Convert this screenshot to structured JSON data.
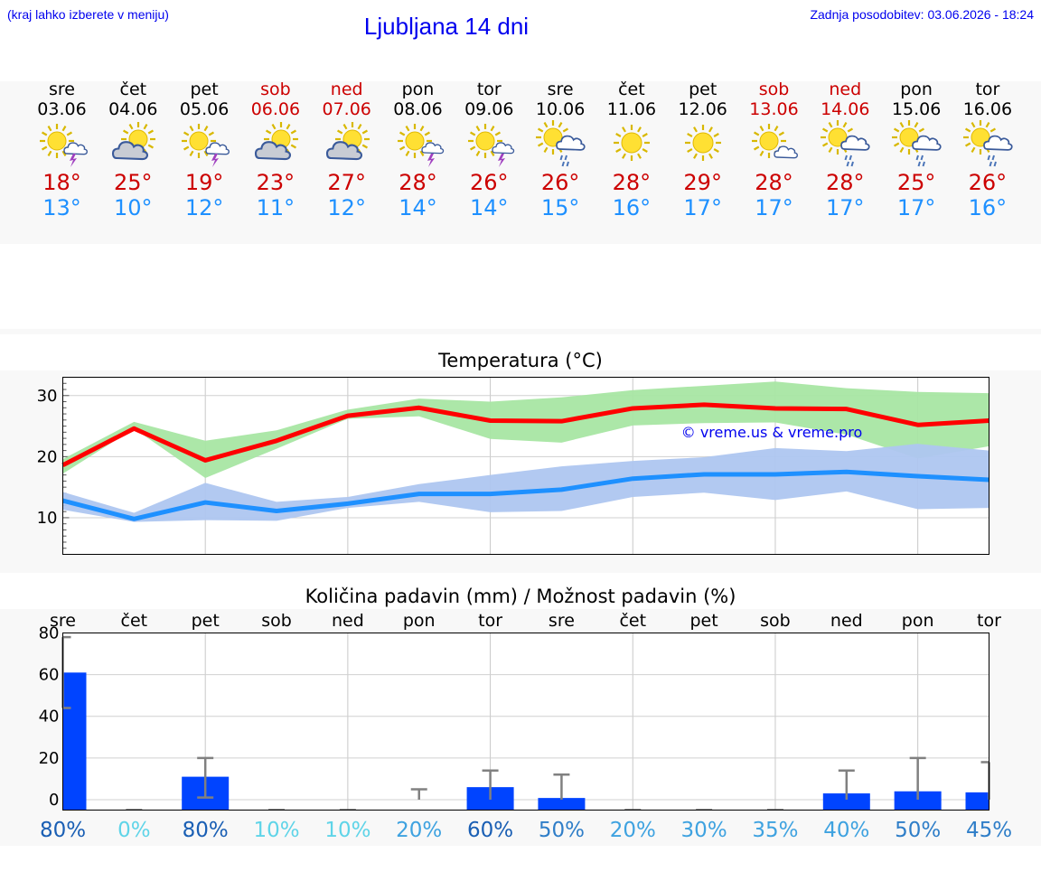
{
  "header": {
    "hint": "(kraj lahko izberete v meniju)",
    "title": "Ljubljana 14 dni",
    "updated": "Zadnja posodobitev: 03.06.2026 - 18:24"
  },
  "days": [
    {
      "name": "sre",
      "date": "03.06",
      "weekend": false,
      "icon": "sun-cloud-thunder-icon",
      "hi": "18°",
      "lo": "13°"
    },
    {
      "name": "čet",
      "date": "04.06",
      "weekend": false,
      "icon": "sun-cloud-icon",
      "hi": "25°",
      "lo": "10°"
    },
    {
      "name": "pet",
      "date": "05.06",
      "weekend": false,
      "icon": "sun-cloud-thunder-icon",
      "hi": "19°",
      "lo": "12°"
    },
    {
      "name": "sob",
      "date": "06.06",
      "weekend": true,
      "icon": "sun-cloud-icon",
      "hi": "23°",
      "lo": "11°"
    },
    {
      "name": "ned",
      "date": "07.06",
      "weekend": true,
      "icon": "sun-cloud-icon",
      "hi": "27°",
      "lo": "12°"
    },
    {
      "name": "pon",
      "date": "08.06",
      "weekend": false,
      "icon": "sun-thunder-icon",
      "hi": "28°",
      "lo": "14°"
    },
    {
      "name": "tor",
      "date": "09.06",
      "weekend": false,
      "icon": "sun-thunder-icon",
      "hi": "26°",
      "lo": "14°"
    },
    {
      "name": "sre",
      "date": "10.06",
      "weekend": false,
      "icon": "sun-cloud-rain-icon",
      "hi": "26°",
      "lo": "15°"
    },
    {
      "name": "čet",
      "date": "11.06",
      "weekend": false,
      "icon": "sun-icon",
      "hi": "28°",
      "lo": "16°"
    },
    {
      "name": "pet",
      "date": "12.06",
      "weekend": false,
      "icon": "sun-icon",
      "hi": "29°",
      "lo": "17°"
    },
    {
      "name": "sob",
      "date": "13.06",
      "weekend": true,
      "icon": "sun-small-cloud-icon",
      "hi": "28°",
      "lo": "17°"
    },
    {
      "name": "ned",
      "date": "14.06",
      "weekend": true,
      "icon": "sun-cloud-rain-icon",
      "hi": "28°",
      "lo": "17°"
    },
    {
      "name": "pon",
      "date": "15.06",
      "weekend": false,
      "icon": "sun-cloud-rain-icon",
      "hi": "25°",
      "lo": "17°"
    },
    {
      "name": "tor",
      "date": "16.06",
      "weekend": false,
      "icon": "sun-cloud-rain-icon",
      "hi": "26°",
      "lo": "16°"
    }
  ],
  "colors": {
    "max_line": "#ff0000",
    "max_band": "#a8e6a3",
    "min_line": "#1e90ff",
    "min_band": "#aec6f0",
    "bar": "#0044ff",
    "whisker": "#808080",
    "grid": "#cccccc",
    "watermark": "#0000ee"
  },
  "chart_data": [
    {
      "type": "line",
      "title": "Temperatura (°C)",
      "watermark": "© vreme.us & vreme.pro",
      "x": [
        "03.06",
        "04.06",
        "05.06",
        "06.06",
        "07.06",
        "08.06",
        "09.06",
        "10.06",
        "11.06",
        "12.06",
        "13.06",
        "14.06",
        "15.06",
        "16.06"
      ],
      "ylim": [
        4,
        33
      ],
      "yticks": [
        10,
        20,
        30
      ],
      "grid": true,
      "series": [
        {
          "role": "max",
          "values": [
            18.6,
            24.6,
            19.4,
            22.6,
            26.7,
            28.0,
            25.9,
            25.8,
            27.9,
            28.5,
            27.9,
            27.8,
            25.2,
            25.9
          ],
          "band_low": [
            17.2,
            24.6,
            16.5,
            21.3,
            26.2,
            26.6,
            22.9,
            22.3,
            25.1,
            25.5,
            25.6,
            23.6,
            19.7,
            21.7
          ],
          "band_high": [
            19.6,
            25.7,
            22.6,
            24.3,
            27.7,
            29.5,
            29.0,
            29.7,
            30.9,
            31.6,
            32.3,
            31.2,
            30.6,
            30.4
          ]
        },
        {
          "role": "min",
          "values": [
            12.8,
            9.8,
            12.5,
            11.1,
            12.3,
            13.9,
            13.9,
            14.6,
            16.4,
            17.1,
            17.1,
            17.5,
            16.8,
            16.2
          ],
          "band_low": [
            11.3,
            9.3,
            9.6,
            9.5,
            11.6,
            12.6,
            10.9,
            11.1,
            13.4,
            14.1,
            12.9,
            14.3,
            11.4,
            11.6
          ],
          "band_high": [
            14.2,
            10.8,
            15.7,
            12.6,
            13.4,
            15.5,
            17.0,
            18.4,
            19.3,
            19.9,
            21.4,
            20.9,
            22.1,
            21.0
          ]
        }
      ]
    },
    {
      "type": "bar",
      "title": "Količina padavin (mm) / Možnost padavin (%)",
      "categories": [
        "sre",
        "čet",
        "pet",
        "sob",
        "ned",
        "pon",
        "tor",
        "sre",
        "čet",
        "pet",
        "sob",
        "ned",
        "pon",
        "tor"
      ],
      "ylim": [
        -5,
        80
      ],
      "yticks": [
        0,
        20,
        40,
        60,
        80
      ],
      "grid": true,
      "values": [
        61,
        0,
        11,
        0,
        0,
        0,
        6,
        0.8,
        0,
        0,
        0,
        3,
        4,
        3.5
      ],
      "whisker_low": [
        44,
        0,
        1,
        0,
        0,
        0,
        0,
        0,
        0,
        0,
        0,
        0,
        0,
        0
      ],
      "whisker_high": [
        78,
        0,
        20,
        0,
        0,
        5,
        14,
        12,
        0,
        0,
        0,
        14,
        20,
        18
      ],
      "probability_labels": [
        "80%",
        "0%",
        "80%",
        "10%",
        "10%",
        "20%",
        "60%",
        "50%",
        "20%",
        "30%",
        "35%",
        "40%",
        "50%",
        "45%"
      ],
      "probability_values": [
        80,
        0,
        80,
        10,
        10,
        20,
        60,
        50,
        20,
        30,
        35,
        40,
        50,
        45
      ]
    }
  ]
}
